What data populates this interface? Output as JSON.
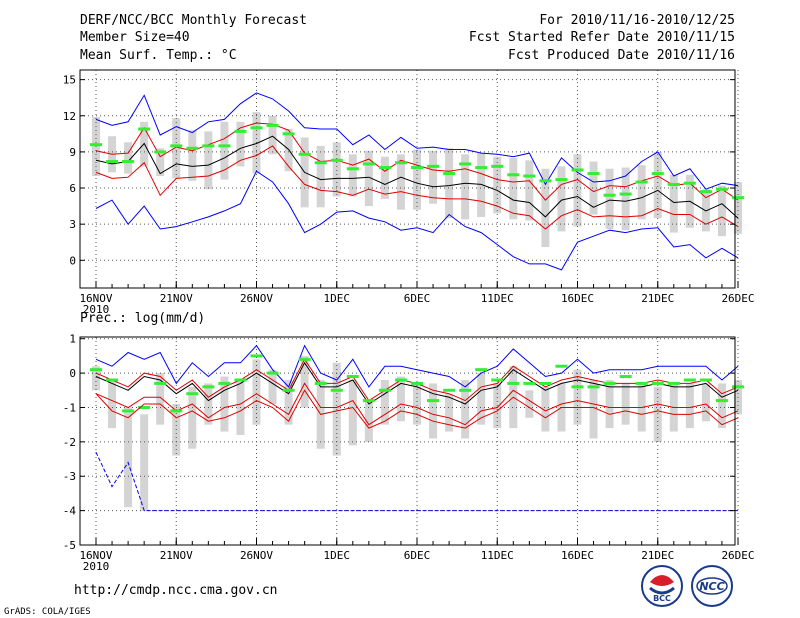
{
  "header": {
    "title": "DERF/NCC/BCC Monthly Forecast",
    "member_size": "Member Size=40",
    "variable_1": "Mean Surf. Temp.: °C",
    "forecast_period": "For 2010/11/16-2010/12/25",
    "started_refer": "Fcst Started Refer Date 2010/11/15",
    "produced": "Fcst Produced Date 2010/11/16"
  },
  "footer": {
    "url": "http://cmdp.ncc.cma.gov.cn",
    "grads": "GrADS: COLA/IGES",
    "logo_bcc": "BCC",
    "logo_ncc": "NCC"
  },
  "colors": {
    "mean": "#000000",
    "spread": "#e00000",
    "envelope": "#0000ff",
    "box": "#d4d4d4",
    "ensemble_mean_bar": "#33ee33"
  },
  "chart_data": [
    {
      "type": "line",
      "title": "Mean Surf. Temp.: °C",
      "year_label": "2010",
      "x_tick_labels": [
        "16NOV",
        "21NOV",
        "26NOV",
        "1DEC",
        "6DEC",
        "11DEC",
        "16DEC",
        "21DEC",
        "26DEC"
      ],
      "y_ticks": [
        0,
        3,
        6,
        9,
        12,
        15
      ],
      "ylim": [
        -2.3,
        15.8
      ],
      "days": 40,
      "series": [
        {
          "name": "max",
          "values": [
            4.3,
            5,
            3,
            4.5,
            2.6,
            2.8,
            3.2,
            3.6,
            4.1,
            4.7,
            7.4,
            6.5,
            4.7,
            2.3,
            3,
            4,
            4.1,
            3.5,
            3.2,
            2.5,
            2.7,
            2.3,
            3.8,
            2.8,
            2.3,
            1.3,
            0.3,
            -0.3,
            -0.3,
            -0.8,
            1.5,
            2,
            2.5,
            2.3,
            2.6,
            2.7,
            1.1,
            1.3,
            0.2,
            1,
            0.2
          ]
        },
        {
          "name": "max_upper",
          "values": [
            11.7,
            11.2,
            11.5,
            13.7,
            10.4,
            11.1,
            10.6,
            11.5,
            11.7,
            13,
            13.9,
            13.4,
            12.4,
            11,
            10.9,
            10.9,
            9.6,
            10.4,
            9.2,
            10.2,
            9.3,
            9.4,
            9.2,
            9.2,
            8.9,
            8.8,
            8.6,
            8.9,
            6.3,
            8.5,
            7.3,
            6.5,
            6.6,
            7,
            8.2,
            9,
            7,
            7.6,
            5.9,
            6.4,
            6.2
          ]
        },
        {
          "name": "spread_upper",
          "values": [
            9.1,
            8.8,
            8.9,
            11,
            8.6,
            9.4,
            9.1,
            9.6,
            10.1,
            11,
            11.4,
            11.3,
            10.8,
            8.9,
            8.2,
            8.3,
            7.9,
            8.4,
            7.4,
            8.3,
            7.9,
            7.5,
            7.4,
            7.6,
            7.2,
            6.7,
            6.5,
            6.6,
            5,
            6.3,
            6.7,
            5.7,
            6.2,
            6.1,
            6.6,
            7,
            6.2,
            6.4,
            5.2,
            5.9,
            5
          ]
        },
        {
          "name": "mean",
          "values": [
            8.3,
            8,
            8.2,
            9.7,
            7.2,
            8,
            7.8,
            7.9,
            8.5,
            9.3,
            9.7,
            10.3,
            9.2,
            7.3,
            6.7,
            6.8,
            6.8,
            6.9,
            6.3,
            6.9,
            6.4,
            6.1,
            6.2,
            6.4,
            6.3,
            5.8,
            5,
            4.8,
            3.6,
            5,
            5.3,
            4.4,
            5,
            4.9,
            5.2,
            5.8,
            4.8,
            4.9,
            4.1,
            4.7,
            3.5
          ]
        },
        {
          "name": "spread_lower",
          "values": [
            7.3,
            6.8,
            6.9,
            8.1,
            5.4,
            6.8,
            6.9,
            7,
            7.5,
            8.3,
            8.7,
            9.5,
            7.8,
            6.3,
            5.8,
            5.7,
            5.4,
            5.9,
            5.5,
            5.7,
            5.4,
            5.2,
            5.1,
            5.1,
            4.9,
            4.5,
            3.9,
            3.7,
            2.6,
            3.7,
            4.2,
            3.6,
            3.7,
            3.6,
            3.7,
            4.3,
            3.8,
            3.8,
            3,
            3.6,
            2.8
          ]
        },
        {
          "name": "ensemble_mean_bar",
          "values": [
            9.6,
            8.2,
            8.2,
            10.9,
            9,
            9.5,
            9.3,
            9.5,
            9.5,
            10.7,
            11,
            11.2,
            10.5,
            8.8,
            8.1,
            8.3,
            7.6,
            8,
            7.7,
            8.1,
            7.7,
            7.8,
            7.2,
            8,
            7.7,
            7.8,
            7.1,
            7,
            6.6,
            6.7,
            7.5,
            7.2,
            5.4,
            5.5,
            6.5,
            7.2,
            6.3,
            6.4,
            5.7,
            5.9,
            5.2
          ]
        }
      ],
      "box_ranges": [
        [
          7,
          11.9
        ],
        [
          7.3,
          10.3
        ],
        [
          7.2,
          9.8
        ],
        [
          7.8,
          11.5
        ],
        [
          7,
          9.3
        ],
        [
          6.8,
          11.8
        ],
        [
          6.6,
          10.8
        ],
        [
          5.9,
          10.7
        ],
        [
          6.7,
          11.5
        ],
        [
          7.8,
          11.5
        ],
        [
          7.2,
          12.3
        ],
        [
          8.8,
          12
        ],
        [
          7.4,
          10.9
        ],
        [
          4.4,
          10.2
        ],
        [
          4.4,
          9.5
        ],
        [
          5.3,
          9.8
        ],
        [
          5.3,
          8.8
        ],
        [
          4.5,
          9.1
        ],
        [
          5.1,
          8.6
        ],
        [
          4.2,
          8.8
        ],
        [
          4.2,
          9.2
        ],
        [
          4.7,
          9.1
        ],
        [
          3.5,
          9.3
        ],
        [
          3.4,
          8.8
        ],
        [
          3.6,
          8.9
        ],
        [
          3.9,
          8.6
        ],
        [
          3.4,
          8.5
        ],
        [
          3.3,
          8.3
        ],
        [
          1.1,
          7.6
        ],
        [
          2.4,
          7.8
        ],
        [
          2.8,
          8.8
        ],
        [
          3.8,
          8.2
        ],
        [
          2.6,
          7.6
        ],
        [
          2.5,
          7.7
        ],
        [
          3.4,
          7.9
        ],
        [
          3.5,
          9
        ],
        [
          2.3,
          7.1
        ],
        [
          2.7,
          7.1
        ],
        [
          2.4,
          5.9
        ],
        [
          2,
          6.2
        ],
        [
          2.2,
          6.5
        ]
      ]
    },
    {
      "type": "line",
      "title": "Prec.: log(mm/d)",
      "year_label": "2010",
      "x_tick_labels": [
        "16NOV",
        "21NOV",
        "26NOV",
        "1DEC",
        "6DEC",
        "11DEC",
        "16DEC",
        "21DEC",
        "26DEC"
      ],
      "y_ticks": [
        -5,
        -4,
        -3,
        -2,
        -1,
        0,
        1
      ],
      "ylim": [
        -5,
        1.05
      ],
      "days": 40,
      "series": [
        {
          "name": "max_upper",
          "values": [
            0.4,
            0.2,
            0.6,
            0.4,
            0.6,
            -0.3,
            0.3,
            -0.1,
            0.3,
            0.3,
            0.8,
            0.1,
            -0.4,
            0.8,
            0,
            -0.2,
            0.4,
            -0.4,
            0.2,
            0.2,
            0.1,
            0,
            -0.1,
            -0.4,
            0,
            0.2,
            0.7,
            0.3,
            -0.1,
            0,
            0.4,
            0,
            0.1,
            0.1,
            0.1,
            0.2,
            0.2,
            0.2,
            0.2,
            -0.2,
            0.2
          ]
        },
        {
          "name": "min",
          "values": [
            -2.3,
            -3.3,
            -2.6,
            -4,
            -4,
            -4,
            -4,
            -4,
            -4,
            -4,
            -4,
            -4,
            -4,
            -4,
            -4,
            -4,
            -4,
            -4,
            -4,
            -4,
            -4,
            -4,
            -4,
            -4,
            -4,
            -4,
            -4,
            -4,
            -4,
            -4,
            -4,
            -4,
            -4,
            -4,
            -4,
            -4,
            -4,
            -4,
            -4,
            -4,
            -4
          ]
        },
        {
          "name": "spread_upper",
          "values": [
            0,
            -0.2,
            -0.4,
            0,
            -0.1,
            -0.5,
            -0.2,
            -0.7,
            -0.4,
            -0.2,
            0.1,
            -0.2,
            -0.5,
            0.4,
            -0.3,
            -0.3,
            -0.1,
            -0.8,
            -0.5,
            -0.2,
            -0.3,
            -0.5,
            -0.6,
            -0.8,
            -0.4,
            -0.3,
            0.2,
            -0.1,
            -0.4,
            -0.2,
            -0.1,
            -0.2,
            -0.3,
            -0.3,
            -0.3,
            -0.2,
            -0.3,
            -0.3,
            -0.2,
            -0.6,
            -0.4
          ]
        },
        {
          "name": "mean",
          "values": [
            -0.1,
            -0.3,
            -0.5,
            -0.1,
            -0.2,
            -0.6,
            -0.3,
            -0.8,
            -0.5,
            -0.3,
            0,
            -0.3,
            -0.6,
            0.3,
            -0.4,
            -0.4,
            -0.2,
            -0.9,
            -0.6,
            -0.3,
            -0.4,
            -0.6,
            -0.7,
            -0.9,
            -0.5,
            -0.4,
            0.1,
            -0.2,
            -0.5,
            -0.3,
            -0.2,
            -0.3,
            -0.4,
            -0.4,
            -0.4,
            -0.3,
            -0.4,
            -0.4,
            -0.3,
            -0.7,
            -0.5
          ]
        },
        {
          "name": "spread_lower",
          "values": [
            -0.6,
            -0.8,
            -1,
            -0.7,
            -0.7,
            -1.1,
            -0.9,
            -1.3,
            -1,
            -0.9,
            -0.6,
            -0.9,
            -1.2,
            -0.3,
            -1,
            -1,
            -0.8,
            -1.5,
            -1.2,
            -0.9,
            -1,
            -1.2,
            -1.3,
            -1.5,
            -1.1,
            -1,
            -0.5,
            -0.8,
            -1.1,
            -0.9,
            -0.8,
            -0.9,
            -1,
            -1,
            -1,
            -0.9,
            -1,
            -1,
            -0.9,
            -1.3,
            -1.1
          ]
        },
        {
          "name": "ensemble_mean_bar",
          "values": [
            0.1,
            -0.2,
            -1.1,
            -1,
            -0.3,
            -1.1,
            -0.6,
            -0.4,
            -0.3,
            -0.2,
            0.5,
            0,
            -0.5,
            0.4,
            -0.3,
            -0.5,
            -0.1,
            -0.8,
            -0.5,
            -0.2,
            -0.3,
            -0.8,
            -0.5,
            -0.5,
            0.1,
            -0.2,
            -0.3,
            -0.3,
            -0.3,
            0.2,
            -0.4,
            -0.4,
            -0.3,
            -0.1,
            -0.3,
            -0.3,
            -0.3,
            -0.2,
            -0.2,
            -0.8,
            -0.4
          ]
        },
        {
          "name": "envelope_lower",
          "values": [
            -0.6,
            -1.1,
            -1.3,
            -0.9,
            -0.9,
            -1.3,
            -1.1,
            -1.4,
            -1.3,
            -1.1,
            -0.8,
            -1,
            -1.4,
            -0.5,
            -1.2,
            -1.1,
            -1,
            -1.6,
            -1.4,
            -1.1,
            -1.2,
            -1.4,
            -1.5,
            -1.6,
            -1.3,
            -1.1,
            -0.7,
            -1,
            -1.3,
            -1,
            -1,
            -1,
            -1.2,
            -1.1,
            -1.2,
            -1.1,
            -1.2,
            -1.2,
            -1.1,
            -1.5,
            -1.3
          ]
        }
      ],
      "box_ranges": [
        [
          -0.5,
          0.2
        ],
        [
          -1.6,
          -0.2
        ],
        [
          -3.9,
          -1
        ],
        [
          -4,
          -1.2
        ],
        [
          -1.5,
          0
        ],
        [
          -2.4,
          -0.9
        ],
        [
          -2.2,
          -0.4
        ],
        [
          -1.5,
          -0.3
        ],
        [
          -1.7,
          -0.1
        ],
        [
          -1.8,
          -0.2
        ],
        [
          -1.5,
          0.4
        ],
        [
          -0.9,
          0.1
        ],
        [
          -1.5,
          -0.2
        ],
        [
          -1,
          0.5
        ],
        [
          -2.2,
          -0.2
        ],
        [
          -2.4,
          0.3
        ],
        [
          -2.1,
          -0.2
        ],
        [
          -2,
          -0.8
        ],
        [
          -1.5,
          -0.2
        ],
        [
          -1.4,
          -0.1
        ],
        [
          -1.5,
          -0.3
        ],
        [
          -1.9,
          -0.3
        ],
        [
          -1.7,
          -0.6
        ],
        [
          -1.9,
          -0.2
        ],
        [
          -1.5,
          0
        ],
        [
          -1.6,
          -0.3
        ],
        [
          -1.6,
          0.2
        ],
        [
          -1.3,
          -0.5
        ],
        [
          -1.7,
          -0.4
        ],
        [
          -1.7,
          -0.3
        ],
        [
          -1.5,
          0.1
        ],
        [
          -1.9,
          -0.2
        ],
        [
          -1.6,
          -0.2
        ],
        [
          -1.5,
          -0.3
        ],
        [
          -1.7,
          -0.3
        ],
        [
          -2,
          -0.4
        ],
        [
          -1.7,
          -0.3
        ],
        [
          -1.6,
          -0.3
        ],
        [
          -1.4,
          -0.3
        ],
        [
          -1.6,
          -0.3
        ],
        [
          -1.2,
          -0.2
        ]
      ]
    }
  ]
}
